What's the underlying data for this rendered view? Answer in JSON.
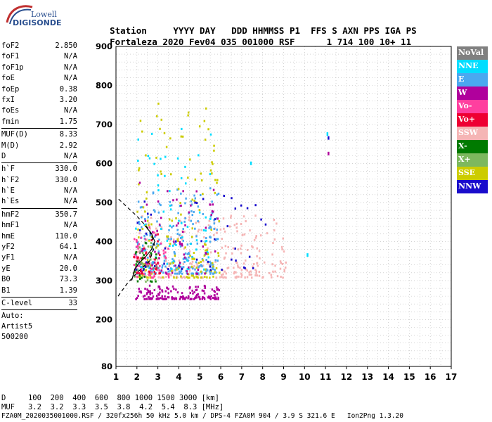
{
  "logo": {
    "line1": "Lowell",
    "line2": "DIGISONDE"
  },
  "header": {
    "row1": [
      "Station",
      "YYYY",
      "DAY",
      "DDD",
      "HHMMSS",
      "P1",
      "FFS",
      "S",
      "AXN",
      "PPS",
      "IGA",
      "PS"
    ],
    "row2": [
      "Fortaleza",
      "2020",
      "Fev04",
      "035",
      "001000",
      "RSF",
      "",
      "1",
      "714",
      "100",
      "10+",
      "11"
    ]
  },
  "params": [
    {
      "name": "foF2",
      "value": "2.850"
    },
    {
      "name": "foF1",
      "value": "N/A"
    },
    {
      "name": "foF1p",
      "value": "N/A"
    },
    {
      "name": "foE",
      "value": "N/A"
    },
    {
      "name": "foEp",
      "value": "0.38"
    },
    {
      "name": "fxI",
      "value": "3.20"
    },
    {
      "name": "foEs",
      "value": "N/A"
    },
    {
      "name": "fmin",
      "value": "1.75",
      "sep": true
    },
    {
      "name": "MUF(D)",
      "value": "8.33"
    },
    {
      "name": "M(D)",
      "value": "2.92"
    },
    {
      "name": "D",
      "value": "N/A",
      "sep": true
    },
    {
      "name": "h`F",
      "value": "330.0"
    },
    {
      "name": "h`F2",
      "value": "330.0"
    },
    {
      "name": "h`E",
      "value": "N/A"
    },
    {
      "name": "h`Es",
      "value": "N/A",
      "sep": true
    },
    {
      "name": "hmF2",
      "value": "350.7"
    },
    {
      "name": "hmF1",
      "value": "N/A"
    },
    {
      "name": "hmE",
      "value": "110.0"
    },
    {
      "name": "yF2",
      "value": "64.1"
    },
    {
      "name": "yF1",
      "value": "N/A"
    },
    {
      "name": "yE",
      "value": "20.0"
    },
    {
      "name": "B0",
      "value": "73.3"
    },
    {
      "name": "B1",
      "value": "1.39",
      "sep": true
    },
    {
      "name": "C-level",
      "value": "33",
      "sep": true
    }
  ],
  "auto": [
    "Auto:",
    "Artist5",
    "500200"
  ],
  "legend": [
    {
      "label": "NoVal",
      "color": "#808080"
    },
    {
      "label": "NNE",
      "color": "#00ddff"
    },
    {
      "label": "E",
      "color": "#4aa8f0"
    },
    {
      "label": "W",
      "color": "#b0009c"
    },
    {
      "label": "Vo-",
      "color": "#ff3f9f"
    },
    {
      "label": "Vo+",
      "color": "#ee0033"
    },
    {
      "label": "SSW",
      "color": "#f5b5b5"
    },
    {
      "label": "X-",
      "color": "#007a00"
    },
    {
      "label": "X+",
      "color": "#7db85e"
    },
    {
      "label": "SSE",
      "color": "#cccc00"
    },
    {
      "label": "NNW",
      "color": "#1a0ccc"
    }
  ],
  "distance": {
    "d_label": "D",
    "d_values": [
      "100",
      "200",
      "400",
      "600",
      "800",
      "1000",
      "1500",
      "3000"
    ],
    "d_unit": "[km]",
    "muf_label": "MUF",
    "muf_values": [
      "3.2",
      "3.2",
      "3.3",
      "3.5",
      "3.8",
      "4.2",
      "5.4",
      "8.3"
    ],
    "muf_unit": "[MHz]"
  },
  "footer": "FZA0M_2020035001000.RSF / 320fx256h 50 kHz 5.0 km / DPS-4 FZA0M 904 / 3.9 S 321.6 E   Ion2Png 1.3.20",
  "chart_data": {
    "type": "scatter",
    "title": "",
    "xlabel": "",
    "ylabel": "",
    "xlim": [
      1,
      17
    ],
    "ylim": [
      80,
      900
    ],
    "xticks": [
      1,
      2,
      3,
      4,
      5,
      6,
      7,
      8,
      9,
      10,
      11,
      12,
      13,
      14,
      15,
      16,
      17
    ],
    "yticks": [
      80,
      200,
      300,
      400,
      500,
      600,
      700,
      800,
      900
    ],
    "grid": true,
    "legend_placement": "right",
    "clusters": [
      {
        "series": "SSW",
        "x_range": [
          1.9,
          9.1
        ],
        "y_range": [
          310,
          470
        ],
        "count": 260
      },
      {
        "series": "E",
        "x_range": [
          1.9,
          5.9
        ],
        "y_range": [
          320,
          540
        ],
        "count": 230
      },
      {
        "series": "NNE",
        "x_range": [
          1.9,
          5.6
        ],
        "y_range": [
          330,
          720
        ],
        "count": 70
      },
      {
        "series": "SSE",
        "x_range": [
          1.9,
          5.9
        ],
        "y_range": [
          310,
          760
        ],
        "count": 150
      },
      {
        "series": "W",
        "x_range": [
          1.9,
          5.9
        ],
        "y_range": [
          255,
          290
        ],
        "count": 150
      },
      {
        "series": "W",
        "x_range": [
          1.9,
          5.9
        ],
        "y_range": [
          320,
          560
        ],
        "count": 70
      },
      {
        "series": "Vo-",
        "x_range": [
          1.8,
          3.5
        ],
        "y_range": [
          310,
          440
        ],
        "count": 50
      },
      {
        "series": "Vo+",
        "x_range": [
          1.8,
          3.2
        ],
        "y_range": [
          320,
          430
        ],
        "count": 35
      },
      {
        "series": "X-",
        "x_range": [
          1.8,
          2.9
        ],
        "y_range": [
          300,
          400
        ],
        "count": 25
      },
      {
        "series": "X+",
        "x_range": [
          1.8,
          2.9
        ],
        "y_range": [
          300,
          400
        ],
        "count": 20
      },
      {
        "series": "NNW",
        "x_range": [
          1.9,
          8.2
        ],
        "y_range": [
          330,
          520
        ],
        "count": 45
      },
      {
        "series": "NoVal",
        "x_range": [
          1.9,
          3.0
        ],
        "y_range": [
          330,
          380
        ],
        "count": 10
      }
    ],
    "isolated_points": [
      {
        "series": "NNE",
        "x": 10.1,
        "y": 370
      },
      {
        "series": "NNE",
        "x": 7.4,
        "y": 605
      },
      {
        "series": "W",
        "x": 11.1,
        "y": 630
      },
      {
        "series": "NNW",
        "x": 11.1,
        "y": 670
      },
      {
        "series": "NNE",
        "x": 11.05,
        "y": 680
      },
      {
        "series": "SSW",
        "x": 9.0,
        "y": 330
      }
    ],
    "trace_series": [
      {
        "name": "profile_solid",
        "style": "solid",
        "x": [
          1.75,
          1.9,
          2.1,
          2.4,
          2.7,
          2.85,
          2.7,
          2.4
        ],
        "y": [
          300,
          330,
          345,
          360,
          380,
          400,
          420,
          440
        ]
      },
      {
        "name": "profile_dashed",
        "style": "dashed",
        "x": [
          1.1,
          1.5,
          2.0,
          2.6,
          2.85,
          2.6,
          2.0,
          1.5,
          1.1
        ],
        "y": [
          260,
          290,
          320,
          350,
          390,
          430,
          465,
          490,
          510
        ]
      }
    ]
  }
}
